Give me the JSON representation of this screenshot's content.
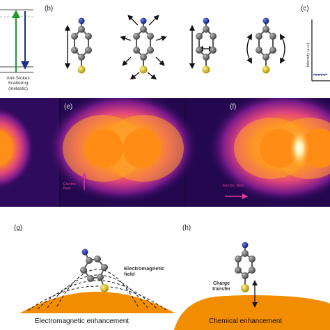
{
  "panels": {
    "b": "(b)",
    "c": "(c)",
    "e": "(e)",
    "f": "(f)",
    "g": "(g)",
    "h": "(h)"
  },
  "text": {
    "anti_stokes": "Anti-Stokes Scattering (inelastic)",
    "intensity": "Intensity (a.u.)",
    "electric_field": "Electric field",
    "em_field": "Electromagnetic field",
    "charge_transfer": "Charge transfer",
    "em_enhancement": "Electromagnetic enhancement",
    "chem_enhancement": "Chemical enhancement"
  },
  "colors": {
    "nitrogen": "#1a2fa0",
    "carbon": "#6f6f6f",
    "sulfur": "#d9c21c",
    "metal": "#f08a00",
    "field_bg": "#2a0a5a",
    "green_arrow": "#1f9a2a",
    "blue_arrow": "#1c2f8a",
    "field_arrow": "#e0389a"
  },
  "icons": {
    "vibration_modes": [
      "vertical-stretch-arrows",
      "radial-breathing-arrows",
      "ring-stretch-arrows",
      "rotation-arrows"
    ]
  }
}
